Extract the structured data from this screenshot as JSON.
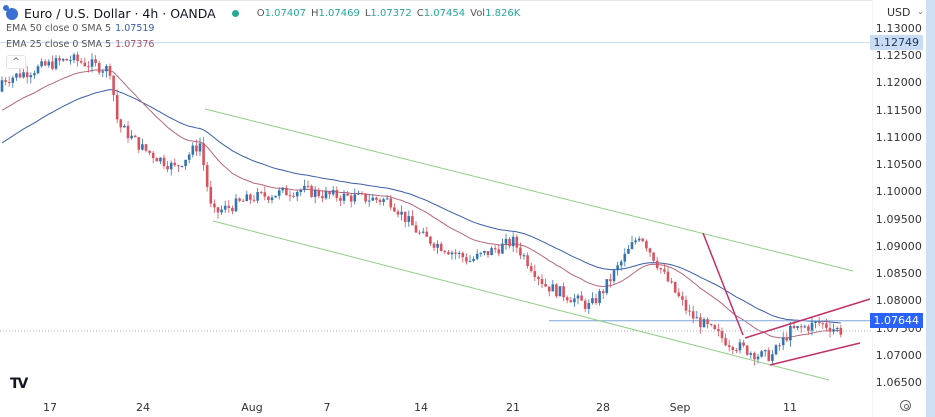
{
  "header": {
    "symbol_title": "Euro / U.S. Dollar · 4h · OANDA",
    "ohlc": {
      "o_label": "O",
      "o": "1.07407",
      "h_label": "H",
      "h": "1.07469",
      "l_label": "L",
      "l": "1.07372",
      "c_label": "C",
      "c": "1.07454",
      "vol_label": "Vol",
      "vol": "1.826K"
    },
    "indicators": [
      {
        "label": "EMA 50 close 0 SMA 5",
        "value": "1.07519",
        "color": "#3a5ea8"
      },
      {
        "label": "EMA 25 close 0 SMA 5",
        "value": "1.07376",
        "color": "#a8506b"
      }
    ],
    "collapse_icon": "^"
  },
  "price_axis": {
    "currency": "USD",
    "currency_chevron": "⌄",
    "ticks": [
      "1.13000",
      "1.12500",
      "1.12000",
      "1.11500",
      "1.11000",
      "1.10500",
      "1.10000",
      "1.09500",
      "1.09000",
      "1.08500",
      "1.08000",
      "1.07500",
      "1.07000",
      "1.06500"
    ],
    "badges": [
      {
        "value": "1.12749",
        "bg": "#c9dcf3",
        "fg": "#1e3a66"
      },
      {
        "value": "1.07644",
        "bg": "#2962ff",
        "fg": "#ffffff"
      }
    ]
  },
  "time_axis": {
    "labels": [
      "17",
      "24",
      "Aug",
      "7",
      "14",
      "21",
      "28",
      "Sep",
      "11"
    ]
  },
  "footer": {
    "logo": "TV",
    "settings_icon": "settings"
  },
  "colors": {
    "up": "#3174b4",
    "down": "#d9535f",
    "ema50": "#3a5ea8",
    "ema25": "#b5687c",
    "channel": "#8fcf86",
    "trend_lines": "#c2306a",
    "hline": "#7da6d9"
  },
  "chart_data": {
    "type": "candlestick",
    "title": "Euro / U.S. Dollar · 4h · OANDA",
    "xlabel": "",
    "ylabel": "USD",
    "ylim": [
      1.0625,
      1.1315
    ],
    "x_tick_labels": [
      "17",
      "24",
      "Aug",
      "7",
      "14",
      "21",
      "28",
      "Sep",
      "11"
    ],
    "y_tick_labels": [
      "1.13000",
      "1.12500",
      "1.12000",
      "1.11500",
      "1.11000",
      "1.10500",
      "1.10000",
      "1.09500",
      "1.09000",
      "1.08500",
      "1.08000",
      "1.07500",
      "1.07000",
      "1.06500"
    ],
    "last_ohlc": {
      "open": 1.07407,
      "high": 1.07469,
      "low": 1.07372,
      "close": 1.07454,
      "volume": "1.826K"
    },
    "ema50_last": 1.07519,
    "ema25_last": 1.07376,
    "marked_levels": [
      1.12749,
      1.07644
    ],
    "approx_close_path": [
      {
        "date": "Jul 14",
        "close": 1.1205
      },
      {
        "date": "Jul 17",
        "close": 1.1235
      },
      {
        "date": "Jul 18",
        "close": 1.1245
      },
      {
        "date": "Jul 20",
        "close": 1.1225
      },
      {
        "date": "Jul 21",
        "close": 1.1125
      },
      {
        "date": "Jul 24",
        "close": 1.108
      },
      {
        "date": "Jul 26",
        "close": 1.1045
      },
      {
        "date": "Jul 27",
        "close": 1.109
      },
      {
        "date": "Jul 28",
        "close": 1.096
      },
      {
        "date": "Aug 1",
        "close": 1.099
      },
      {
        "date": "Aug 4",
        "close": 1.1005
      },
      {
        "date": "Aug 7",
        "close": 1.0995
      },
      {
        "date": "Aug 10",
        "close": 1.0985
      },
      {
        "date": "Aug 14",
        "close": 1.092
      },
      {
        "date": "Aug 17",
        "close": 1.0875
      },
      {
        "date": "Aug 21",
        "close": 1.091
      },
      {
        "date": "Aug 23",
        "close": 1.083
      },
      {
        "date": "Aug 25",
        "close": 1.079
      },
      {
        "date": "Aug 28",
        "close": 1.082
      },
      {
        "date": "Aug 30",
        "close": 1.0925
      },
      {
        "date": "Aug 31",
        "close": 1.0845
      },
      {
        "date": "Sep 1",
        "close": 1.0775
      },
      {
        "date": "Sep 5",
        "close": 1.0725
      },
      {
        "date": "Sep 7",
        "close": 1.07
      },
      {
        "date": "Sep 8",
        "close": 1.07
      },
      {
        "date": "Sep 11",
        "close": 1.0745
      },
      {
        "date": "Sep 12",
        "close": 1.076
      },
      {
        "date": "Sep 13",
        "close": 1.0745
      }
    ],
    "annotations": [
      {
        "type": "descending_channel",
        "color": "#8fcf86"
      },
      {
        "type": "rising_wedge_lines",
        "color": "#c2306a"
      },
      {
        "type": "horizontal_line",
        "price": 1.07644
      }
    ],
    "grid": false,
    "legend": "top-left"
  }
}
